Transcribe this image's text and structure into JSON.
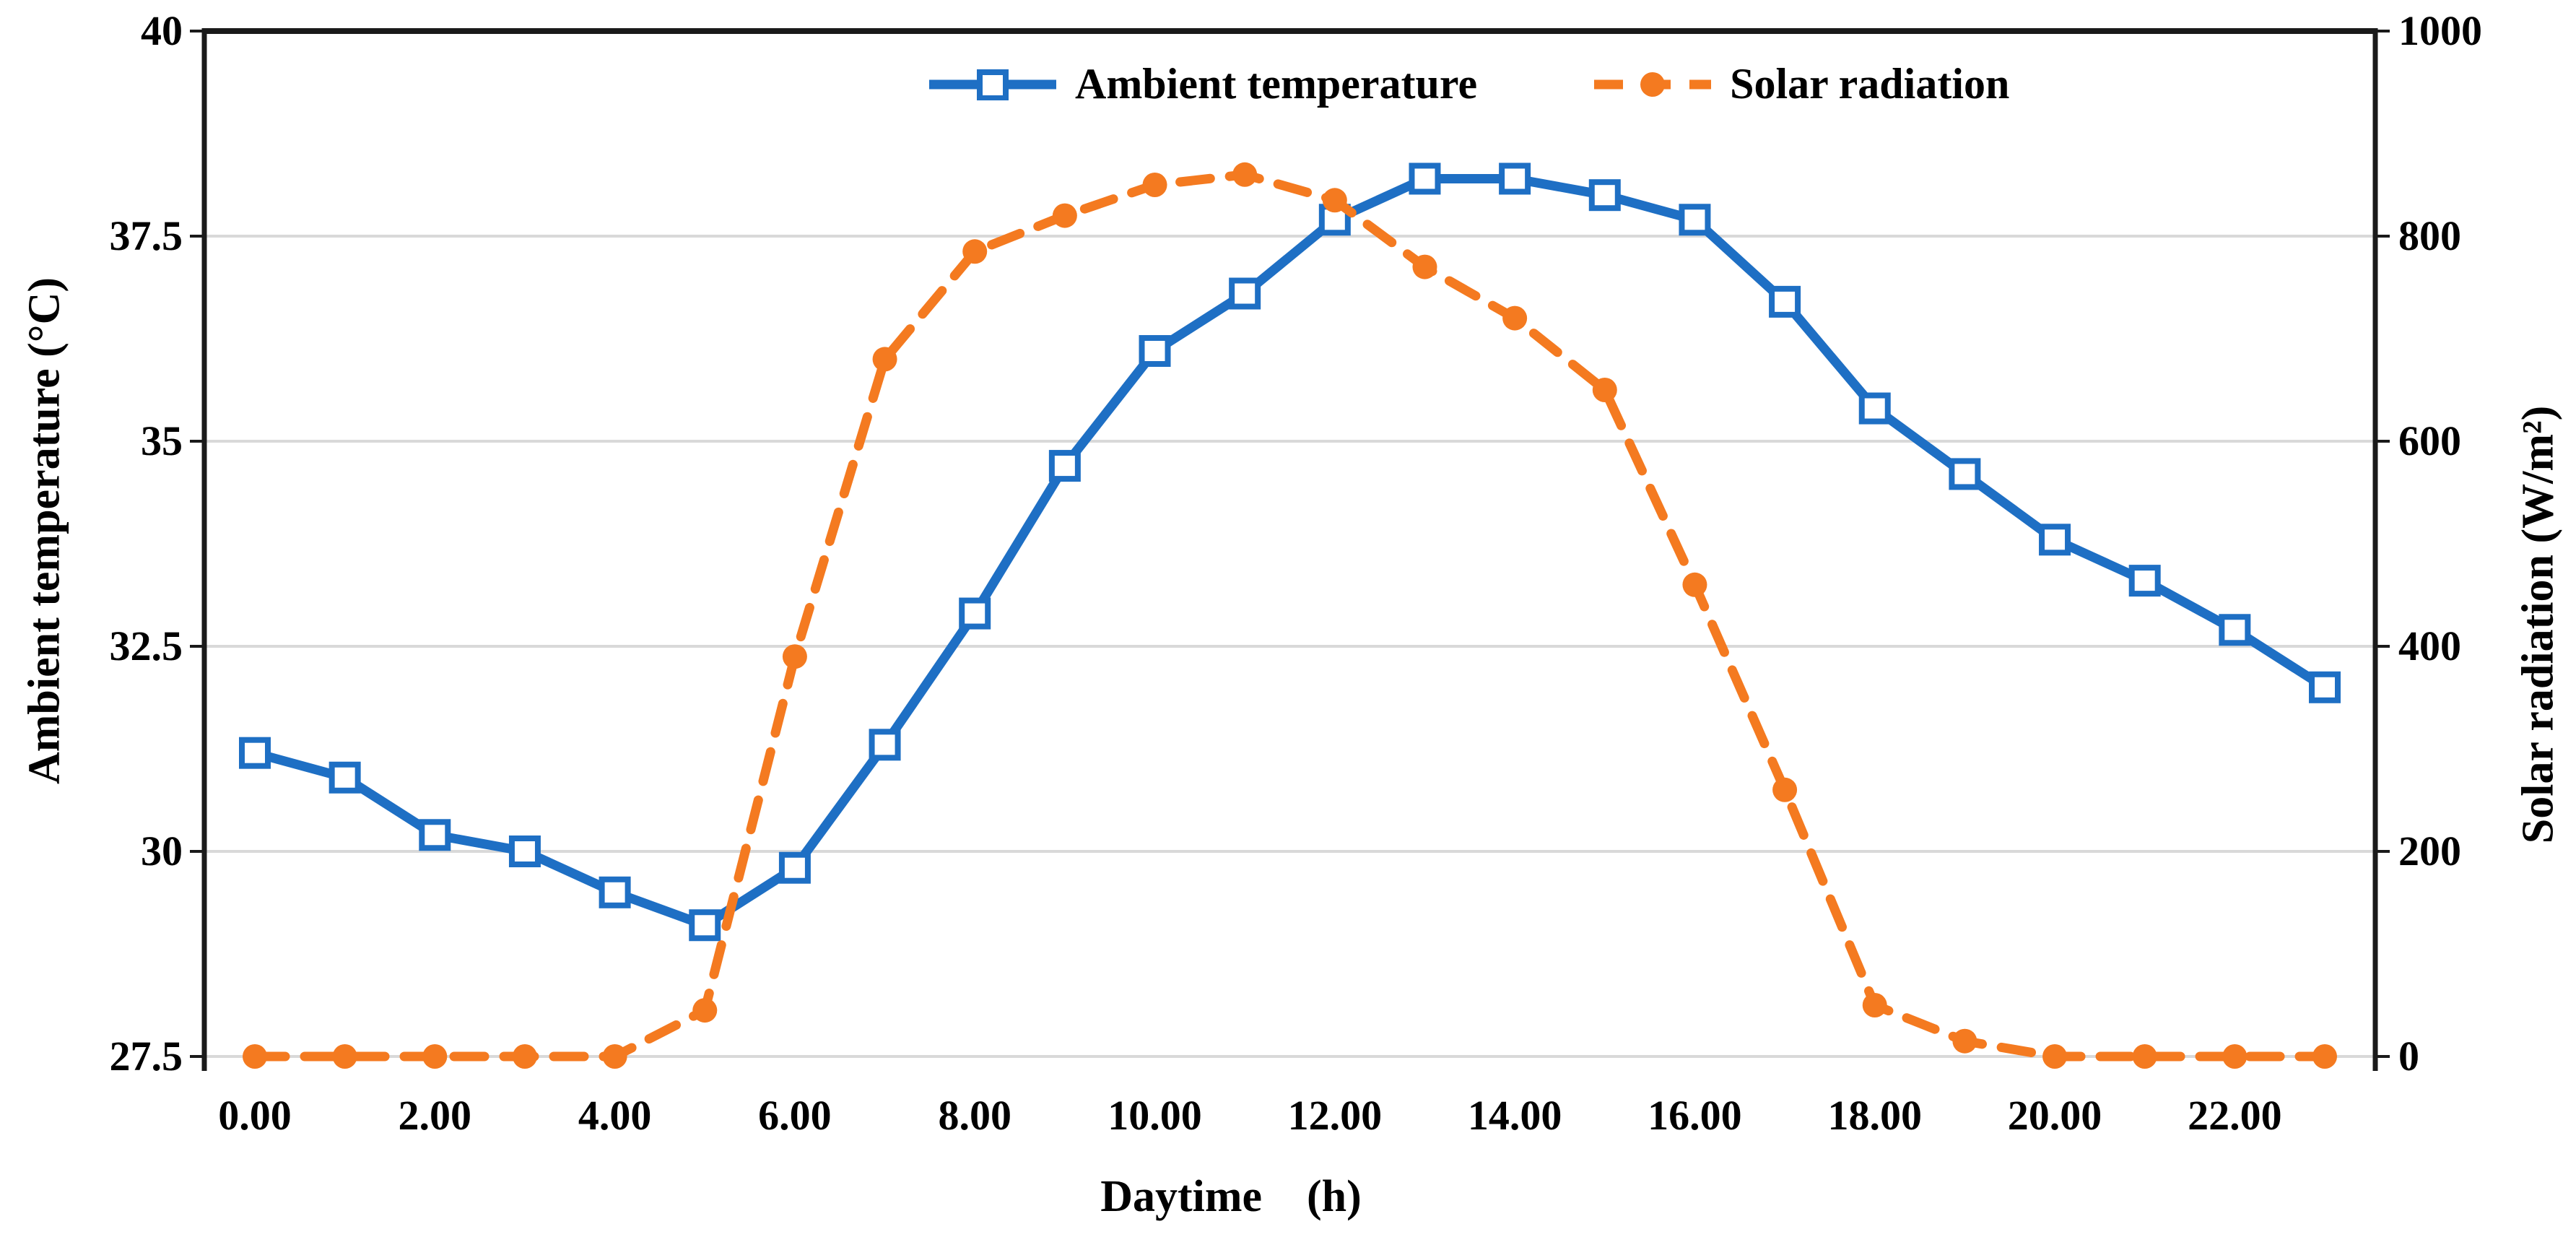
{
  "chart_data": {
    "type": "line",
    "title": "",
    "xlabel": "Daytime    (h)",
    "x": [
      0,
      1,
      2,
      3,
      4,
      5,
      6,
      7,
      8,
      9,
      10,
      11,
      12,
      13,
      14,
      15,
      16,
      17,
      18,
      19,
      20,
      21,
      22,
      23
    ],
    "x_tick_labels": [
      "0.00",
      "2.00",
      "4.00",
      "6.00",
      "8.00",
      "10.00",
      "12.00",
      "14.00",
      "16.00",
      "18.00",
      "20.00",
      "22.00"
    ],
    "x_tick_positions": [
      0,
      2,
      4,
      6,
      8,
      10,
      12,
      14,
      16,
      18,
      20,
      22
    ],
    "grid": true,
    "legend_position": "top-center",
    "background_color": "#ffffff",
    "gridline_color": "#d9d9d9",
    "axis_line_color": "#1a1a1a",
    "left_axis": {
      "label": "Ambient temperature (°C)",
      "min": 27.5,
      "max": 40,
      "tick_labels": [
        "40",
        "37.5",
        "35",
        "32.5",
        "30",
        "27.5"
      ],
      "tick_values": [
        40,
        37.5,
        35,
        32.5,
        30,
        27.5
      ]
    },
    "right_axis": {
      "label": "Solar radiation (W/m²)",
      "min": 0,
      "max": 1000,
      "tick_labels": [
        "1000",
        "800",
        "600",
        "400",
        "200",
        "0"
      ],
      "tick_values": [
        1000,
        800,
        600,
        400,
        200,
        0
      ]
    },
    "series": [
      {
        "name": "Ambient temperature",
        "axis": "left",
        "color": "#1e6fc4",
        "line_style": "solid",
        "marker": "open-square",
        "values": [
          31.2,
          30.9,
          30.2,
          30.0,
          29.5,
          29.1,
          29.8,
          31.3,
          32.9,
          34.7,
          36.1,
          36.8,
          37.7,
          38.2,
          38.2,
          38.0,
          37.7,
          36.7,
          35.4,
          34.6,
          33.8,
          33.3,
          32.7,
          32.0
        ]
      },
      {
        "name": "Solar radiation",
        "axis": "right",
        "color": "#f47a20",
        "line_style": "dashed",
        "marker": "filled-circle",
        "values": [
          0,
          0,
          0,
          0,
          0,
          45,
          390,
          680,
          785,
          820,
          850,
          860,
          835,
          770,
          720,
          650,
          460,
          260,
          50,
          15,
          0,
          0,
          0,
          0
        ]
      }
    ]
  }
}
